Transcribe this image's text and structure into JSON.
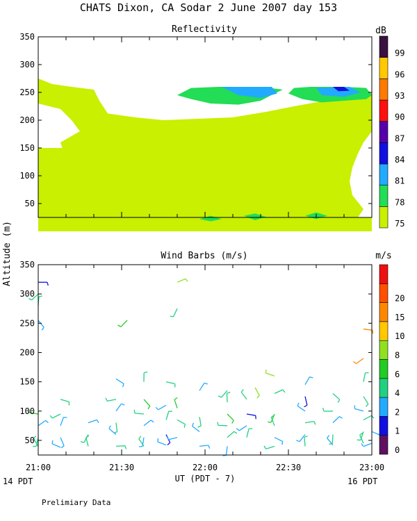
{
  "page": {
    "title": "CHATS Dixon, CA  Sodar   2 June 2007  day 153",
    "shared_ylabel": "Altitude (m)",
    "footer_note": "Prelimiary Data",
    "x_left_note": "14 PDT",
    "x_right_note": "16 PDT"
  },
  "chart_data": [
    {
      "type": "heatmap",
      "title": "Reflectivity",
      "colorbar_label": "dB",
      "colorbar_ticks": [
        "75",
        "78",
        "81",
        "84",
        "87",
        "90",
        "93",
        "96",
        "99"
      ],
      "colorbar_colors": [
        "#c8f000",
        "#22dd55",
        "#22aaff",
        "#1010e0",
        "#5500aa",
        "#ff1010",
        "#ff7a00",
        "#ffc800",
        "#3a1040"
      ],
      "ylabel": "",
      "xlabel": "",
      "ylim": [
        25,
        350
      ],
      "yticks": [
        "50",
        "100",
        "150",
        "200",
        "250",
        "300",
        "350"
      ],
      "xlim": [
        0,
        120
      ],
      "x_minor_step": 10,
      "regions": [
        {
          "level": "75",
          "polygons": [
            [
              [
                10,
                40
              ],
              [
                10,
                150
              ],
              [
                0,
                150
              ],
              [
                0,
                0
              ],
              [
                120,
                0
              ],
              [
                120,
                25
              ],
              [
                115,
                25
              ],
              [
                117,
                40
              ],
              [
                113,
                65
              ],
              [
                112,
                90
              ],
              [
                113,
                115
              ],
              [
                115,
                140
              ],
              [
                117,
                160
              ],
              [
                120,
                180
              ],
              [
                120,
                250
              ],
              [
                92,
                225
              ],
              [
                82,
                215
              ],
              [
                70,
                205
              ],
              [
                55,
                202
              ],
              [
                45,
                200
              ],
              [
                35,
                205
              ],
              [
                25,
                212
              ],
              [
                22,
                235
              ],
              [
                20,
                255
              ],
              [
                12,
                260
              ],
              [
                5,
                265
              ],
              [
                0,
                275
              ],
              [
                0,
                230
              ],
              [
                8,
                220
              ],
              [
                12,
                200
              ],
              [
                15,
                180
              ],
              [
                8,
                160
              ],
              [
                10,
                130
              ],
              [
                10,
                110
              ],
              [
                5,
                90
              ],
              [
                5,
                40
              ]
            ],
            [
              [
                20,
                0
              ],
              [
                25,
                60
              ],
              [
                30,
                110
              ],
              [
                38,
                115
              ],
              [
                42,
                130
              ],
              [
                50,
                145
              ],
              [
                70,
                160
              ],
              [
                80,
                150
              ],
              [
                85,
                170
              ],
              [
                95,
                190
              ],
              [
                105,
                195
              ],
              [
                115,
                180
              ],
              [
                112,
                165
              ],
              [
                100,
                160
              ],
              [
                95,
                125
              ],
              [
                90,
                105
              ],
              [
                98,
                90
              ],
              [
                105,
                80
              ],
              [
                110,
                60
              ],
              [
                115,
                40
              ],
              [
                115,
                0
              ]
            ]
          ]
        },
        {
          "level": "78",
          "polygons": [
            [
              [
                50,
                245
              ],
              [
                55,
                238
              ],
              [
                62,
                230
              ],
              [
                72,
                228
              ],
              [
                80,
                235
              ],
              [
                85,
                248
              ],
              [
                88,
                255
              ],
              [
                80,
                260
              ],
              [
                65,
                260
              ],
              [
                55,
                258
              ]
            ],
            [
              [
                90,
                248
              ],
              [
                95,
                238
              ],
              [
                102,
                232
              ],
              [
                110,
                235
              ],
              [
                118,
                238
              ],
              [
                120,
                245
              ],
              [
                118,
                258
              ],
              [
                110,
                260
              ],
              [
                98,
                260
              ],
              [
                92,
                258
              ]
            ],
            [
              [
                58,
                22
              ],
              [
                62,
                18
              ],
              [
                66,
                22
              ],
              [
                62,
                28
              ]
            ],
            [
              [
                74,
                28
              ],
              [
                78,
                20
              ],
              [
                82,
                26
              ],
              [
                78,
                32
              ]
            ],
            [
              [
                96,
                28
              ],
              [
                100,
                22
              ],
              [
                104,
                28
              ],
              [
                100,
                34
              ]
            ]
          ]
        },
        {
          "level": "81",
          "polygons": [
            [
              [
                66,
                260
              ],
              [
                72,
                245
              ],
              [
                80,
                240
              ],
              [
                86,
                248
              ],
              [
                84,
                260
              ]
            ],
            [
              [
                100,
                258
              ],
              [
                102,
                245
              ],
              [
                110,
                242
              ],
              [
                116,
                250
              ],
              [
                112,
                260
              ]
            ]
          ]
        },
        {
          "level": "84",
          "polygons": [
            [
              [
                106,
                260
              ],
              [
                108,
                252
              ],
              [
                112,
                253
              ],
              [
                110,
                260
              ]
            ]
          ]
        }
      ]
    },
    {
      "type": "scatter",
      "title": "Wind Barbs (m/s)",
      "colorbar_label": "m/s",
      "colorbar_ticks": [
        "0",
        "1",
        "2",
        "4",
        "6",
        "8",
        "10",
        "15",
        "20"
      ],
      "colorbar_colors": [
        "#601060",
        "#1010e0",
        "#22aaff",
        "#20d080",
        "#22cc22",
        "#90e020",
        "#ffc800",
        "#ff8800",
        "#ff5000",
        "#ee1010"
      ],
      "ylabel": "",
      "xlabel": "UT  (PDT - 7)",
      "ylim": [
        25,
        350
      ],
      "yticks": [
        "50",
        "100",
        "150",
        "200",
        "250",
        "300",
        "350"
      ],
      "xlim": [
        0,
        120
      ],
      "xticks": [
        0,
        30,
        60,
        90,
        120
      ],
      "xticklabels": [
        "21:00",
        "21:30",
        "22:00",
        "22:30",
        "23:00"
      ],
      "x_minor_step": 10,
      "barbs": [
        {
          "t": 0,
          "z": 320,
          "s": 1
        },
        {
          "t": 0,
          "z": 300,
          "s": 5
        },
        {
          "t": 0,
          "z": 280,
          "s": 4
        },
        {
          "t": 0,
          "z": 255,
          "s": 3
        },
        {
          "t": 0,
          "z": 95,
          "s": 6
        },
        {
          "t": 0,
          "z": 75,
          "s": 2
        },
        {
          "t": 0,
          "z": 55,
          "s": 4
        },
        {
          "t": 0,
          "z": 40,
          "s": 4
        },
        {
          "t": 8,
          "z": 120,
          "s": 4
        },
        {
          "t": 8,
          "z": 95,
          "s": 5
        },
        {
          "t": 8,
          "z": 75,
          "s": 3
        },
        {
          "t": 8,
          "z": 55,
          "s": 3
        },
        {
          "t": 8,
          "z": 38,
          "s": 2
        },
        {
          "t": 18,
          "z": 80,
          "s": 3
        },
        {
          "t": 18,
          "z": 60,
          "s": 4
        },
        {
          "t": 18,
          "z": 40,
          "s": 4
        },
        {
          "t": 28,
          "z": 155,
          "s": 3
        },
        {
          "t": 28,
          "z": 120,
          "s": 4
        },
        {
          "t": 28,
          "z": 100,
          "s": 2
        },
        {
          "t": 28,
          "z": 80,
          "s": 5
        },
        {
          "t": 28,
          "z": 60,
          "s": 3
        },
        {
          "t": 28,
          "z": 40,
          "s": 4
        },
        {
          "t": 32,
          "z": 255,
          "s": 6
        },
        {
          "t": 38,
          "z": 150,
          "s": 5
        },
        {
          "t": 38,
          "z": 120,
          "s": 6
        },
        {
          "t": 38,
          "z": 95,
          "s": 4
        },
        {
          "t": 38,
          "z": 75,
          "s": 3
        },
        {
          "t": 38,
          "z": 55,
          "s": 2
        },
        {
          "t": 38,
          "z": 40,
          "s": 4
        },
        {
          "t": 46,
          "z": 150,
          "s": 4
        },
        {
          "t": 46,
          "z": 110,
          "s": 3
        },
        {
          "t": 46,
          "z": 85,
          "s": 5
        },
        {
          "t": 46,
          "z": 60,
          "s": 1
        },
        {
          "t": 46,
          "z": 42,
          "s": 3
        },
        {
          "t": 50,
          "z": 320,
          "s": 8
        },
        {
          "t": 50,
          "z": 275,
          "s": 4
        },
        {
          "t": 50,
          "z": 105,
          "s": 6
        },
        {
          "t": 50,
          "z": 85,
          "s": 4
        },
        {
          "t": 50,
          "z": 55,
          "s": 3
        },
        {
          "t": 58,
          "z": 135,
          "s": 3
        },
        {
          "t": 58,
          "z": 90,
          "s": 4
        },
        {
          "t": 58,
          "z": 65,
          "s": 2
        },
        {
          "t": 58,
          "z": 40,
          "s": 3
        },
        {
          "t": 68,
          "z": 135,
          "s": 5
        },
        {
          "t": 68,
          "z": 115,
          "s": 4
        },
        {
          "t": 68,
          "z": 95,
          "s": 6
        },
        {
          "t": 68,
          "z": 75,
          "s": 5
        },
        {
          "t": 68,
          "z": 55,
          "s": 4
        },
        {
          "t": 68,
          "z": 40,
          "s": 3
        },
        {
          "t": 75,
          "z": 120,
          "s": 4
        },
        {
          "t": 75,
          "z": 95,
          "s": 1
        },
        {
          "t": 75,
          "z": 75,
          "s": 3
        },
        {
          "t": 75,
          "z": 55,
          "s": 4
        },
        {
          "t": 78,
          "z": 140,
          "s": 8
        },
        {
          "t": 85,
          "z": 160,
          "s": 8
        },
        {
          "t": 85,
          "z": 130,
          "s": 5
        },
        {
          "t": 85,
          "z": 95,
          "s": 6
        },
        {
          "t": 85,
          "z": 75,
          "s": 4
        },
        {
          "t": 85,
          "z": 55,
          "s": 3
        },
        {
          "t": 85,
          "z": 40,
          "s": 4
        },
        {
          "t": 96,
          "z": 145,
          "s": 3
        },
        {
          "t": 96,
          "z": 125,
          "s": 1
        },
        {
          "t": 96,
          "z": 100,
          "s": 3
        },
        {
          "t": 96,
          "z": 80,
          "s": 4
        },
        {
          "t": 96,
          "z": 60,
          "s": 3
        },
        {
          "t": 96,
          "z": 40,
          "s": 4
        },
        {
          "t": 106,
          "z": 130,
          "s": 5
        },
        {
          "t": 106,
          "z": 100,
          "s": 4
        },
        {
          "t": 106,
          "z": 80,
          "s": 3
        },
        {
          "t": 106,
          "z": 60,
          "s": 4
        },
        {
          "t": 106,
          "z": 42,
          "s": 3
        },
        {
          "t": 117,
          "z": 240,
          "s": 15
        },
        {
          "t": 117,
          "z": 190,
          "s": 15
        },
        {
          "t": 117,
          "z": 150,
          "s": 5
        },
        {
          "t": 117,
          "z": 125,
          "s": 4
        },
        {
          "t": 117,
          "z": 100,
          "s": 3
        },
        {
          "t": 117,
          "z": 85,
          "s": 5
        },
        {
          "t": 117,
          "z": 65,
          "s": 4
        },
        {
          "t": 117,
          "z": 45,
          "s": 4
        },
        {
          "t": 120,
          "z": 65,
          "s": 3
        },
        {
          "t": 120,
          "z": 45,
          "s": 2
        }
      ]
    }
  ]
}
